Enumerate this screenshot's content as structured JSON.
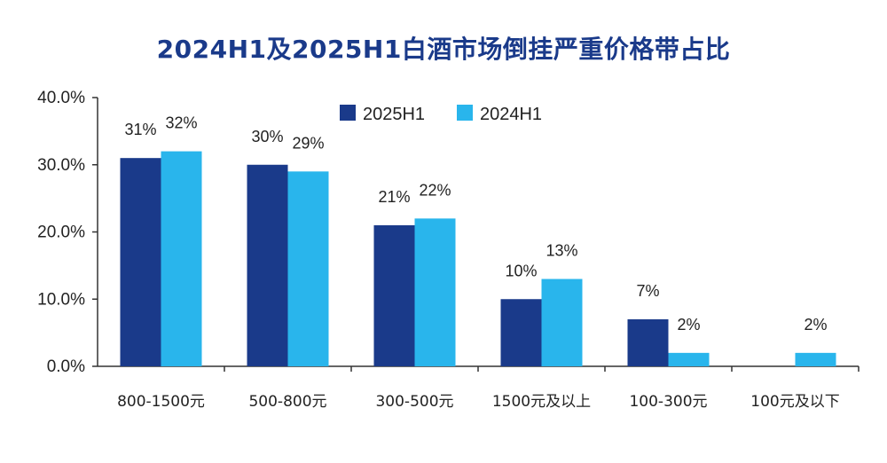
{
  "chart_data": {
    "type": "bar",
    "title": "2024H1及2025H1白酒市场倒挂严重价格带占比",
    "xlabel": "",
    "ylabel": "",
    "ylim": [
      0,
      40
    ],
    "yticks": [
      "0.0%",
      "10.0%",
      "20.0%",
      "30.0%",
      "40.0%"
    ],
    "grid": false,
    "legend_position": "top-center",
    "categories": [
      "800-1500元",
      "500-800元",
      "300-500元",
      "1500元及以上",
      "100-300元",
      "100元及以下"
    ],
    "series": [
      {
        "name": "2025H1",
        "color": "#1a3a8a",
        "values": [
          31,
          30,
          21,
          10,
          7,
          null
        ],
        "labels": [
          "31%",
          "30%",
          "21%",
          "10%",
          "7%",
          ""
        ]
      },
      {
        "name": "2024H1",
        "color": "#29b5ec",
        "values": [
          32,
          29,
          22,
          13,
          2,
          2
        ],
        "labels": [
          "32%",
          "29%",
          "22%",
          "13%",
          "2%",
          "2%"
        ]
      }
    ]
  }
}
